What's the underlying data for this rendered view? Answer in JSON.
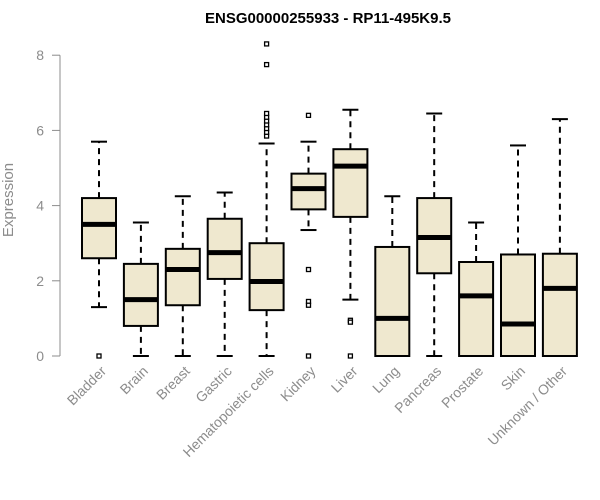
{
  "chart_data": {
    "type": "boxplot",
    "title": "ENSG00000255933 - RP11-495K9.5",
    "xlabel": "",
    "ylabel": "Expression",
    "ylim": [
      0,
      8.4
    ],
    "yticks": [
      0,
      2,
      4,
      6,
      8
    ],
    "grid": false,
    "legend": "none",
    "box_fill": "#efe8cf",
    "box_stroke": "#000000",
    "axis_color": "#8c8c8c",
    "categories": [
      "Bladder",
      "Brain",
      "Breast",
      "Gastric",
      "Hematopoietic cells",
      "Kidney",
      "Liver",
      "Lung",
      "Pancreas",
      "Prostate",
      "Skin",
      "Unknown / Other"
    ],
    "boxes": [
      {
        "whisker_low": 1.3,
        "q1": 2.6,
        "median": 3.5,
        "q3": 4.2,
        "whisker_high": 5.7,
        "outliers": [
          0
        ]
      },
      {
        "whisker_low": 0,
        "q1": 0.8,
        "median": 1.5,
        "q3": 2.45,
        "whisker_high": 3.55,
        "outliers": []
      },
      {
        "whisker_low": 0,
        "q1": 1.35,
        "median": 2.3,
        "q3": 2.85,
        "whisker_high": 4.25,
        "outliers": []
      },
      {
        "whisker_low": 0,
        "q1": 2.05,
        "median": 2.75,
        "q3": 3.65,
        "whisker_high": 4.35,
        "outliers": []
      },
      {
        "whisker_low": 0,
        "q1": 1.22,
        "median": 1.98,
        "q3": 3.0,
        "whisker_high": 5.65,
        "outliers": [
          5.85,
          5.95,
          6.05,
          6.15,
          6.25,
          6.35,
          6.45,
          7.75,
          8.3
        ]
      },
      {
        "whisker_low": 3.35,
        "q1": 3.9,
        "median": 4.45,
        "q3": 4.85,
        "whisker_high": 5.7,
        "outliers": [
          6.4,
          2.3,
          1.45,
          1.35,
          0
        ]
      },
      {
        "whisker_low": 1.5,
        "q1": 3.7,
        "median": 5.05,
        "q3": 5.5,
        "whisker_high": 6.55,
        "outliers": [
          0.95,
          0.9,
          0
        ]
      },
      {
        "whisker_low": 0,
        "q1": 0,
        "median": 1.0,
        "q3": 2.9,
        "whisker_high": 4.25,
        "outliers": []
      },
      {
        "whisker_low": 0,
        "q1": 2.2,
        "median": 3.15,
        "q3": 4.2,
        "whisker_high": 6.45,
        "outliers": []
      },
      {
        "whisker_low": 0,
        "q1": 0,
        "median": 1.6,
        "q3": 2.5,
        "whisker_high": 3.55,
        "outliers": []
      },
      {
        "whisker_low": 0,
        "q1": 0,
        "median": 0.85,
        "q3": 2.7,
        "whisker_high": 5.6,
        "outliers": []
      },
      {
        "whisker_low": 0,
        "q1": 0,
        "median": 1.8,
        "q3": 2.72,
        "whisker_high": 6.3,
        "outliers": []
      }
    ]
  }
}
